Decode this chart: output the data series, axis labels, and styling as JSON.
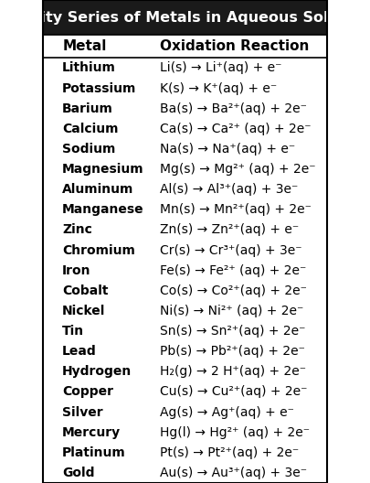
{
  "title": "Activity Series of Metals in Aqueous Solution",
  "col_header_metal": "Metal",
  "col_header_reaction": "Oxidation Reaction",
  "title_bg": "#1a1a1a",
  "title_fg": "#ffffff",
  "row_bg": "#ffffff",
  "border_color": "#000000",
  "metals": [
    "Lithium",
    "Potassium",
    "Barium",
    "Calcium",
    "Sodium",
    "Magnesium",
    "Aluminum",
    "Manganese",
    "Zinc",
    "Chromium",
    "Iron",
    "Cobalt",
    "Nickel",
    "Tin",
    "Lead",
    "Hydrogen",
    "Copper",
    "Silver",
    "Mercury",
    "Platinum",
    "Gold"
  ],
  "reactions_plain": [
    "Li(s) → Li⁺(aq) + e⁻",
    "K(s) → K⁺(aq) + e⁻",
    "Ba(s) → Ba²⁺(aq) + 2e⁻",
    "Ca(s) → Ca²⁺ (aq) + 2e⁻",
    "Na(s) → Na⁺(aq) + e⁻",
    "Mg(s) → Mg²⁺ (aq) + 2e⁻",
    "Al(s) → Al³⁺(aq) + 3e⁻",
    "Mn(s) → Mn²⁺(aq) + 2e⁻",
    "Zn(s) → Zn²⁺(aq) + e⁻",
    "Cr(s) → Cr³⁺(aq) + 3e⁻",
    "Fe(s) → Fe²⁺ (aq) + 2e⁻",
    "Co(s) → Co²⁺(aq) + 2e⁻",
    "Ni(s) → Ni²⁺ (aq) + 2e⁻",
    "Sn(s) → Sn²⁺(aq) + 2e⁻",
    "Pb(s) → Pb²⁺(aq) + 2e⁻",
    "H₂(g) → 2 H⁺(aq) + 2e⁻",
    "Cu(s) → Cu²⁺(aq) + 2e⁻",
    "Ag(s) → Ag⁺(aq) + e⁻",
    "Hg(l) → Hg²⁺ (aq) + 2e⁻",
    "Pt(s) → Pt²⁺(aq) + 2e⁻",
    "Au(s) → Au³⁺(aq) + 3e⁻"
  ],
  "font_size_title": 11.5,
  "font_size_header": 11,
  "font_size_body": 10,
  "col_split": 0.38
}
